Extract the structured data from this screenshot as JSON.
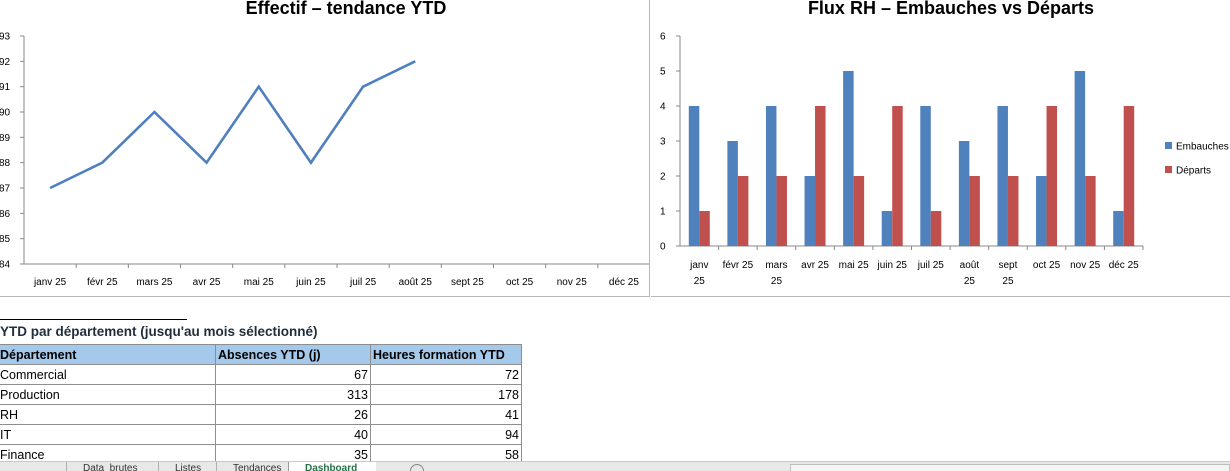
{
  "chart_data": [
    {
      "type": "line",
      "title": "Effectif – tendance YTD",
      "categories": [
        "janv 25",
        "févr 25",
        "mars 25",
        "avr 25",
        "mai 25",
        "juin 25",
        "juil 25",
        "août 25",
        "sept 25",
        "oct 25",
        "nov 25",
        "déc 25"
      ],
      "series": [
        {
          "values": [
            87,
            88,
            90,
            88,
            91,
            88,
            91,
            92,
            null,
            null,
            null,
            null
          ],
          "color": "#4f7fbf"
        }
      ],
      "ylim": [
        84,
        93
      ],
      "yticks": [
        "84",
        "85",
        "86",
        "87",
        "88",
        "89",
        "90",
        "91",
        "92",
        "93"
      ],
      "grid": false,
      "legend": "none"
    },
    {
      "type": "bar",
      "title": "Flux RH – Embauches vs Départs",
      "categories": [
        "janv 25",
        "févr 25",
        "mars 25",
        "avr 25",
        "mai 25",
        "juin 25",
        "juil 25",
        "août 25",
        "sept 25",
        "oct 25",
        "nov 25",
        "déc 25"
      ],
      "category_lines": [
        [
          "janv",
          "25"
        ],
        [
          "févr 25",
          ""
        ],
        [
          "mars",
          "25"
        ],
        [
          "avr 25",
          ""
        ],
        [
          "mai 25",
          ""
        ],
        [
          "juin 25",
          ""
        ],
        [
          "juil 25",
          ""
        ],
        [
          "août",
          "25"
        ],
        [
          "sept",
          "25"
        ],
        [
          "oct 25",
          ""
        ],
        [
          "nov 25",
          ""
        ],
        [
          "déc 25",
          ""
        ]
      ],
      "series": [
        {
          "name": "Embauches",
          "values": [
            4,
            3,
            4,
            2,
            5,
            1,
            4,
            3,
            4,
            2,
            5,
            1
          ],
          "color": "#4f81bd"
        },
        {
          "name": "Départs",
          "values": [
            1,
            2,
            2,
            4,
            2,
            4,
            1,
            2,
            2,
            4,
            2,
            4
          ],
          "color": "#c0504d"
        }
      ],
      "ylim": [
        0,
        6
      ],
      "yticks": [
        "0",
        "1",
        "2",
        "3",
        "4",
        "5",
        "6"
      ],
      "grid": false,
      "legend": "right"
    }
  ],
  "table": {
    "caption": "YTD par département (jusqu'au mois sélectionné)",
    "headers": [
      "Département",
      "Absences YTD (j)",
      "Heures formation YTD"
    ],
    "rows": [
      [
        "Commercial",
        "67",
        "72"
      ],
      [
        "Production",
        "313",
        "178"
      ],
      [
        "RH",
        "26",
        "41"
      ],
      [
        "IT",
        "40",
        "94"
      ],
      [
        "Finance",
        "35",
        "58"
      ]
    ]
  },
  "sheet_tabs": [
    {
      "label": "Data_brutes",
      "active": false
    },
    {
      "label": "Listes",
      "active": false
    },
    {
      "label": "Tendances",
      "active": false
    },
    {
      "label": "Dashboard",
      "active": true
    }
  ]
}
